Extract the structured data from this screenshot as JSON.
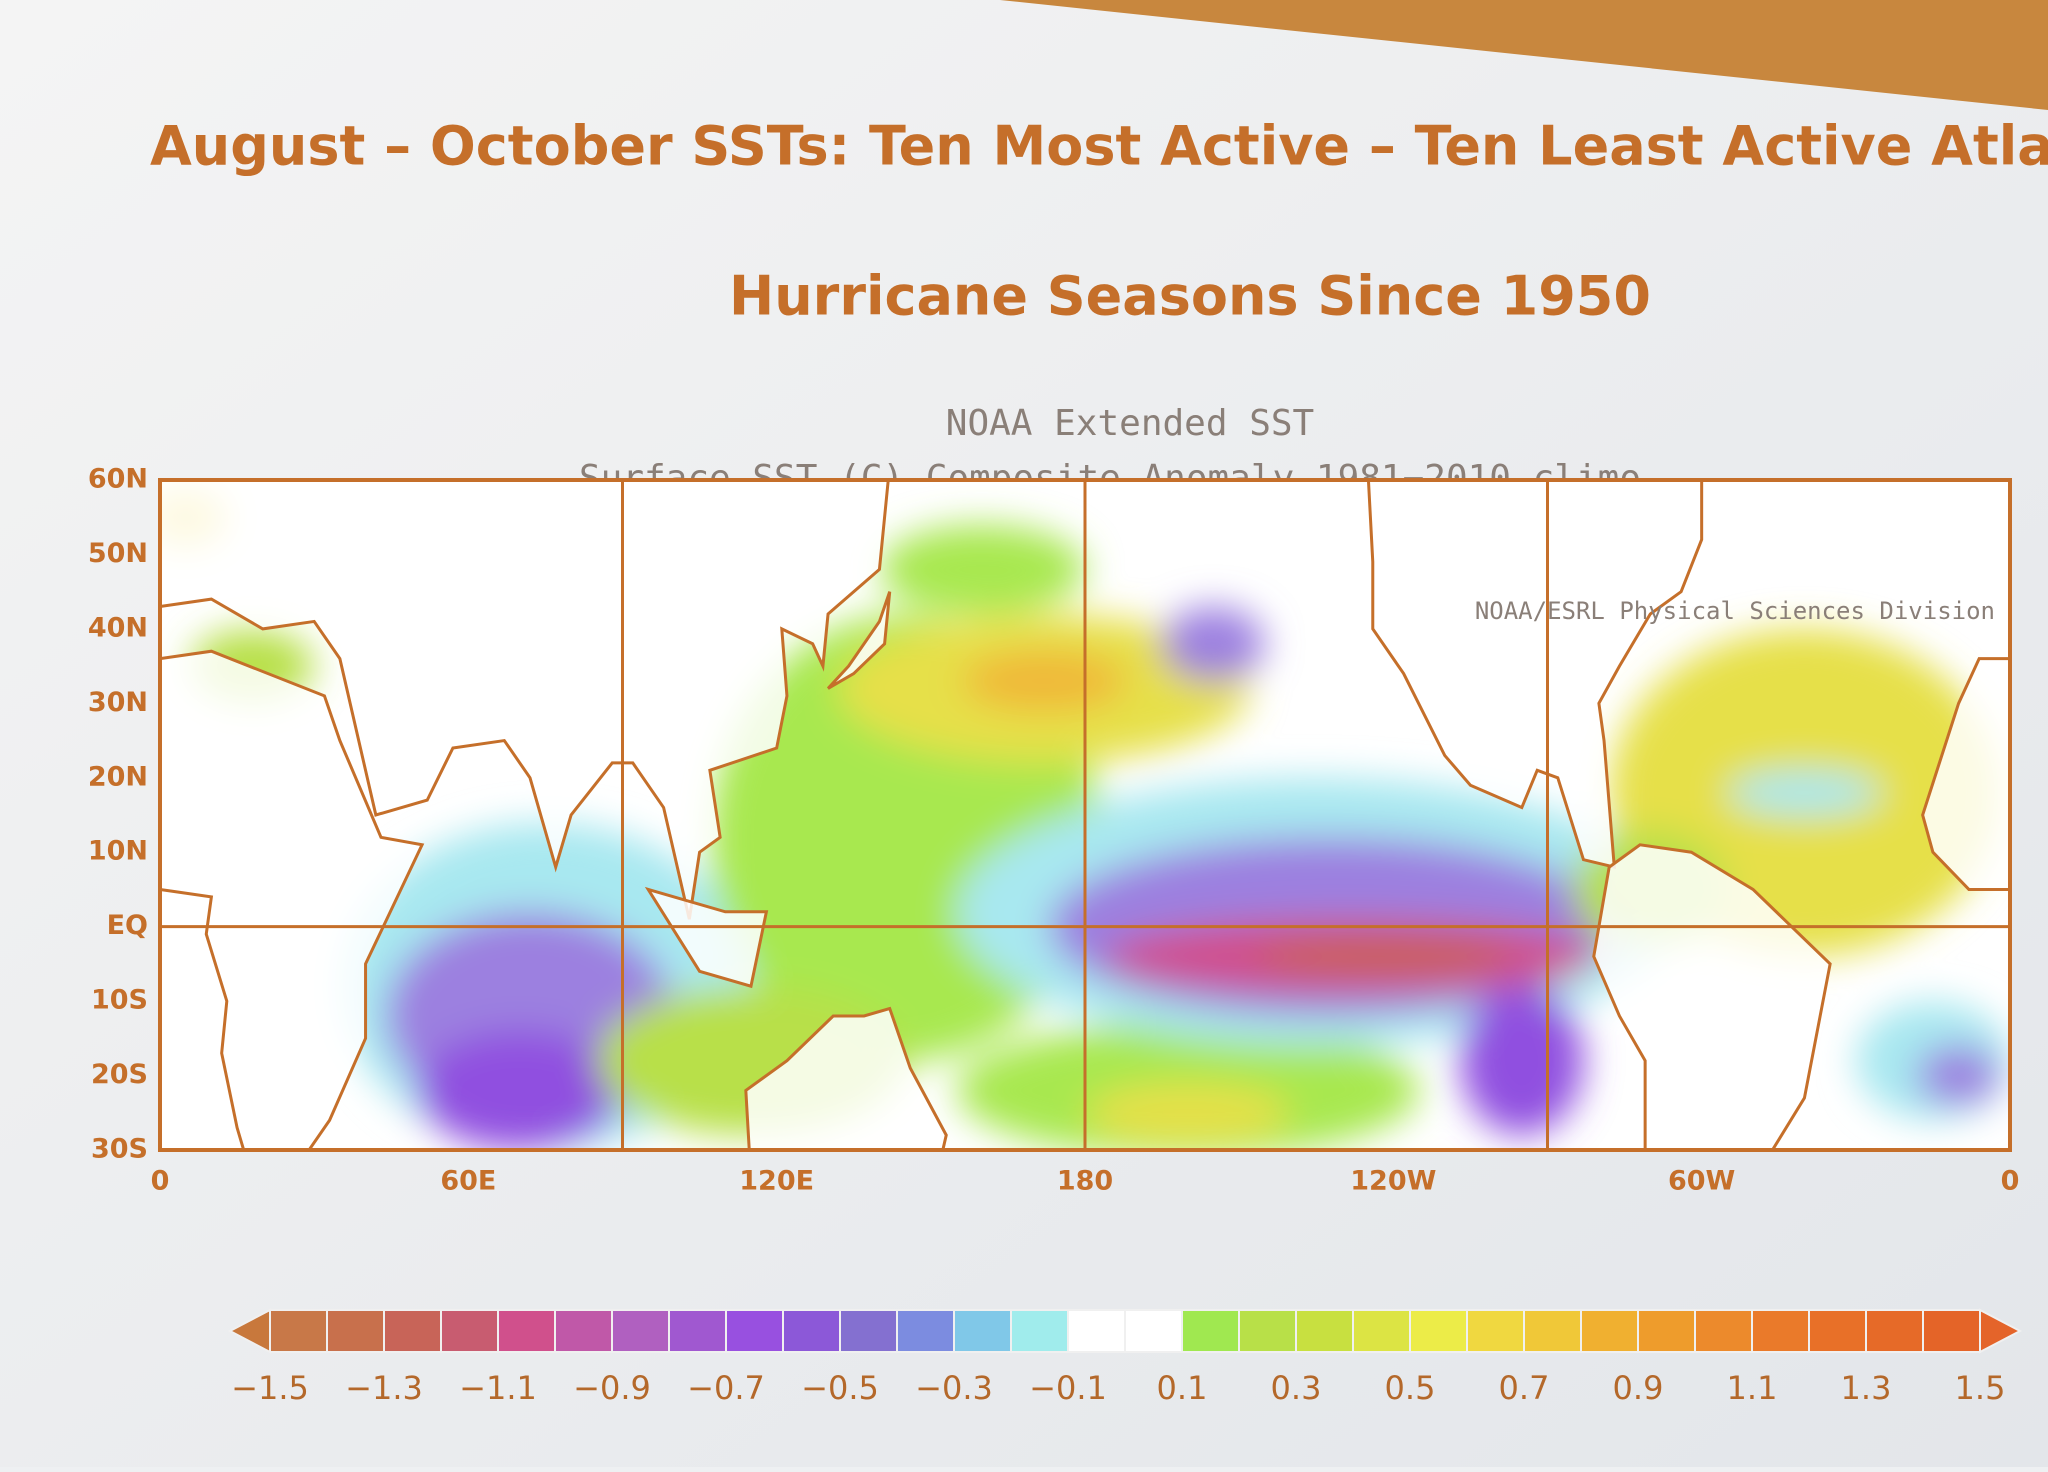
{
  "slide_title": [
    "August – October SSTs: Ten Most Active – Ten Least Active Atlantic",
    "Hurricane Seasons Since 1950"
  ],
  "map": {
    "title": "NOAA Extended SST",
    "subtitle": "Surface SST (C) Composite Anomaly 1981−2010 climo",
    "credit": "NOAA/ESRL Physical Sciences Division",
    "lat_labels": [
      "60N",
      "50N",
      "40N",
      "30N",
      "20N",
      "10N",
      "EQ",
      "10S",
      "20S",
      "30S"
    ],
    "lon_labels": [
      "0",
      "60E",
      "120E",
      "180",
      "120W",
      "60W",
      "0"
    ]
  },
  "colorbar": {
    "labels": [
      "−1.5",
      "−1.3",
      "−1.1",
      "−0.9",
      "−0.7",
      "−0.5",
      "−0.3",
      "−0.1",
      "0.1",
      "0.3",
      "0.5",
      "0.7",
      "0.9",
      "1.1",
      "1.3",
      "1.5"
    ],
    "colors": [
      "#c87848",
      "#c8704c",
      "#c86458",
      "#c85c70",
      "#d0508c",
      "#c058a8",
      "#b060c0",
      "#a058d0",
      "#9850e0",
      "#8c58d8",
      "#8470d0",
      "#7c8ce0",
      "#80c8e8",
      "#a0ecec",
      "#ffffff",
      "#ffffff",
      "#a0e850",
      "#b8e048",
      "#c8e040",
      "#dce444",
      "#ecec48",
      "#f0d840",
      "#f0c838",
      "#f0b030",
      "#ee9c2c",
      "#ec8a2c",
      "#ea7a2a",
      "#e87028",
      "#e66a28",
      "#e46428"
    ],
    "end_colors": [
      "#c8783c",
      "#e4642a"
    ]
  }
}
